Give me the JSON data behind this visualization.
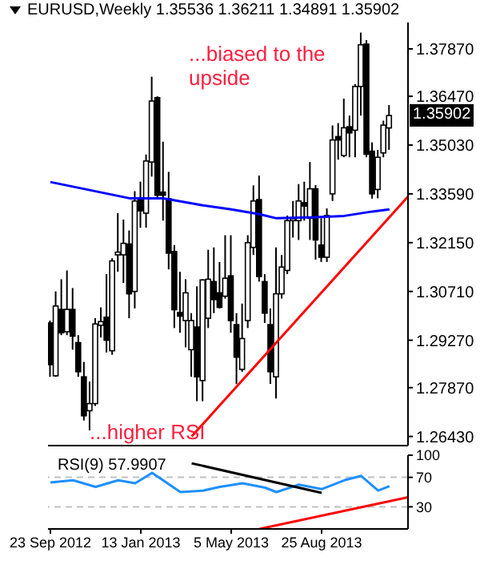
{
  "chart_data": [
    {
      "type": "candlestick",
      "title": "EURUSD,Weekly  1.35536 1.36211 1.34891 1.35902",
      "color": "#000000",
      "x": [
        "2012-09-23",
        "2012-09-30",
        "2012-10-07",
        "2012-10-14",
        "2012-10-21",
        "2012-10-28",
        "2012-11-04",
        "2012-11-11",
        "2012-11-18",
        "2012-11-25",
        "2012-12-02",
        "2012-12-09",
        "2012-12-16",
        "2012-12-23",
        "2012-12-30",
        "2013-01-06",
        "2013-01-13",
        "2013-01-20",
        "2013-01-27",
        "2013-02-03",
        "2013-02-10",
        "2013-02-17",
        "2013-02-24",
        "2013-03-03",
        "2013-03-10",
        "2013-03-17",
        "2013-03-24",
        "2013-03-31",
        "2013-04-07",
        "2013-04-14",
        "2013-04-21",
        "2013-04-28",
        "2013-05-05",
        "2013-05-12",
        "2013-05-19",
        "2013-05-26",
        "2013-06-02",
        "2013-06-09",
        "2013-06-16",
        "2013-06-23",
        "2013-06-30",
        "2013-07-07",
        "2013-07-14",
        "2013-07-21",
        "2013-07-28",
        "2013-08-04",
        "2013-08-11",
        "2013-08-18",
        "2013-08-25",
        "2013-09-01",
        "2013-09-08",
        "2013-09-15",
        "2013-09-22",
        "2013-09-29",
        "2013-10-06",
        "2013-10-13",
        "2013-10-20",
        "2013-10-27",
        "2013-11-03",
        "2013-11-10",
        "2013-11-17"
      ],
      "ohlc": [
        [
          1.2978,
          1.2985,
          1.2819,
          1.2855
        ],
        [
          1.2822,
          1.3071,
          1.2819,
          1.3028
        ],
        [
          1.3018,
          1.3107,
          1.2942,
          1.2949
        ],
        [
          1.2952,
          1.3133,
          1.2942,
          1.3018
        ],
        [
          1.3018,
          1.3081,
          1.2899,
          1.2939
        ],
        [
          1.292,
          1.2942,
          1.2819,
          1.2834
        ],
        [
          1.2819,
          1.2863,
          1.269,
          1.2704
        ],
        [
          1.2719,
          1.2805,
          1.2661,
          1.274
        ],
        [
          1.274,
          1.2992,
          1.2733,
          1.2975
        ],
        [
          1.2971,
          1.3024,
          1.2935,
          1.2982
        ],
        [
          1.2995,
          1.3122,
          1.2891,
          1.2927
        ],
        [
          1.2896,
          1.3169,
          1.2884,
          1.3161
        ],
        [
          1.3179,
          1.3302,
          1.3129,
          1.3187
        ],
        [
          1.3179,
          1.3283,
          1.3096,
          1.3213
        ],
        [
          1.3211,
          1.3251,
          1.2992,
          1.3064
        ],
        [
          1.3071,
          1.3367,
          1.3021,
          1.3338
        ],
        [
          1.3341,
          1.3395,
          1.3259,
          1.3309
        ],
        [
          1.3302,
          1.3475,
          1.3259,
          1.3456
        ],
        [
          1.3453,
          1.3705,
          1.341,
          1.3633
        ],
        [
          1.3643,
          1.3647,
          1.3345,
          1.3355
        ],
        [
          1.3364,
          1.3513,
          1.328,
          1.3355
        ],
        [
          1.3345,
          1.3424,
          1.3136,
          1.3184
        ],
        [
          1.3189,
          1.3208,
          1.2963,
          1.3017
        ],
        [
          1.3009,
          1.3129,
          1.2949,
          1.2998
        ],
        [
          1.2985,
          1.3107,
          1.2906,
          1.3067
        ],
        [
          1.2899,
          1.3007,
          1.2819,
          1.2985
        ],
        [
          1.2966,
          1.3086,
          1.2747,
          1.2819
        ],
        [
          1.2808,
          1.3107,
          1.2747,
          1.3105
        ],
        [
          1.2992,
          1.3194,
          1.2963,
          1.3107
        ],
        [
          1.31,
          1.3201,
          1.3007,
          1.3047
        ],
        [
          1.3067,
          1.3158,
          1.3021,
          1.3024
        ],
        [
          1.3057,
          1.3237,
          1.305,
          1.311
        ],
        [
          1.3117,
          1.3237,
          1.2949,
          1.2985
        ],
        [
          1.2973,
          1.3007,
          1.2798,
          1.2877
        ],
        [
          1.2841,
          1.3035,
          1.2834,
          1.2932
        ],
        [
          1.2985,
          1.3237,
          1.2963,
          1.3215
        ],
        [
          1.3201,
          1.3384,
          1.3179,
          1.3338
        ],
        [
          1.3342,
          1.3413,
          1.31,
          1.3115
        ],
        [
          1.31,
          1.3122,
          1.2978,
          1.3007
        ],
        [
          1.2973,
          1.3021,
          1.2798,
          1.2834
        ],
        [
          1.2819,
          1.3201,
          1.2755,
          1.3064
        ],
        [
          1.3064,
          1.3179,
          1.305,
          1.3143
        ],
        [
          1.3133,
          1.3295,
          1.3122,
          1.328
        ],
        [
          1.328,
          1.3338,
          1.323,
          1.3286
        ],
        [
          1.328,
          1.3388,
          1.3223,
          1.3338
        ],
        [
          1.3333,
          1.3395,
          1.328,
          1.3323
        ],
        [
          1.3287,
          1.3453,
          1.3223,
          1.3374
        ],
        [
          1.3374,
          1.3385,
          1.3165,
          1.3223
        ],
        [
          1.3208,
          1.3287,
          1.3158,
          1.3172
        ],
        [
          1.3172,
          1.3316,
          1.3158,
          1.3295
        ],
        [
          1.3359,
          1.3561,
          1.3338,
          1.3518
        ],
        [
          1.3528,
          1.3568,
          1.346,
          1.3518
        ],
        [
          1.3472,
          1.364,
          1.3467,
          1.3554
        ],
        [
          1.3557,
          1.359,
          1.3467,
          1.3539
        ],
        [
          1.3547,
          1.3683,
          1.3467,
          1.3676
        ],
        [
          1.3676,
          1.3835,
          1.359,
          1.3799
        ],
        [
          1.3801,
          1.3813,
          1.3467,
          1.3476
        ],
        [
          1.3485,
          1.3511,
          1.3345,
          1.3359
        ],
        [
          1.3372,
          1.3489,
          1.3346,
          1.3467
        ],
        [
          1.348,
          1.3575,
          1.3467,
          1.3562
        ],
        [
          1.35536,
          1.36211,
          1.34891,
          1.35902
        ]
      ],
      "series": [
        {
          "type": "line",
          "color": "#0000ff",
          "x": [
            "2012-09-23",
            "2012-12-30",
            "2013-02-10",
            "2013-03-31",
            "2013-05-05",
            "2013-06-09",
            "2013-06-30",
            "2013-08-18",
            "2013-09-22",
            "2013-10-27",
            "2013-11-17"
          ],
          "values": [
            1.3394,
            1.3346,
            1.3346,
            1.3325,
            1.3313,
            1.3299,
            1.3287,
            1.329,
            1.3294,
            1.3307,
            1.3313
          ]
        },
        {
          "type": "line",
          "color": "#ff0000",
          "x": [
            "2013-03-17",
            "2013-12-10"
          ],
          "values": [
            1.2643,
            1.3351
          ]
        }
      ],
      "xlim": [
        "2012-09-20",
        "2013-12-10"
      ],
      "ylim": [
        1.2616,
        1.3865
      ],
      "yticks": [
        {
          "value": 1.2643,
          "label": "1.26430"
        },
        {
          "value": 1.2787,
          "label": "1.27870"
        },
        {
          "value": 1.2927,
          "label": "1.29270"
        },
        {
          "value": 1.3071,
          "label": "1.30710"
        },
        {
          "value": 1.3215,
          "label": "1.32150"
        },
        {
          "value": 1.3359,
          "label": "1.33590"
        },
        {
          "value": 1.3503,
          "label": "1.35030"
        },
        {
          "value": 1.3647,
          "label": "1.36470"
        },
        {
          "value": 1.3787,
          "label": "1.37870"
        }
      ],
      "tick_labels": "y",
      "annotations": [
        "...biased to the upside",
        "...higher RSI",
        {
          "text": "1.35902",
          "y": 1.35902
        }
      ]
    },
    {
      "type": "line",
      "title": "RSI(9) 57.9907",
      "series": [
        {
          "color": "#1e90ff",
          "x": [
            "2012-09-23",
            "2012-10-21",
            "2012-11-18",
            "2012-12-16",
            "2013-01-06",
            "2013-01-27",
            "2013-03-03",
            "2013-03-31",
            "2013-04-21",
            "2013-05-19",
            "2013-06-16",
            "2013-06-30",
            "2013-07-28",
            "2013-08-25",
            "2013-09-22",
            "2013-10-13",
            "2013-11-03",
            "2013-11-17"
          ],
          "values": [
            63,
            66,
            57,
            66,
            62,
            76,
            50,
            52,
            57,
            62,
            56,
            50,
            60,
            54,
            66,
            72,
            52,
            58
          ]
        },
        {
          "color": "#000000",
          "x": [
            "2013-03-17",
            "2013-08-25"
          ],
          "values": [
            89,
            49
          ]
        },
        {
          "color": "#ff0000",
          "x": [
            "2013-06-09",
            "2013-12-10"
          ],
          "values": [
            0,
            43
          ]
        }
      ],
      "xlim": [
        "2012-09-20",
        "2013-12-10"
      ],
      "xticks": [
        {
          "value": "2012-09-23",
          "label": "23 Sep 2012"
        },
        {
          "value": "2013-01-13",
          "label": "13 Jan 2013"
        },
        {
          "value": "2013-05-05",
          "label": "5 May 2013"
        },
        {
          "value": "2013-08-25",
          "label": "25 Aug 2013"
        }
      ],
      "ylim": [
        0,
        100
      ],
      "yticks": [
        30,
        70,
        100
      ],
      "ref_lines": [
        {
          "axis": "y",
          "value": 70,
          "color": "#c0c0c0",
          "line_style": "dashed"
        },
        {
          "axis": "y",
          "value": 30,
          "color": "#c0c0c0",
          "line_style": "dashed"
        }
      ]
    }
  ]
}
